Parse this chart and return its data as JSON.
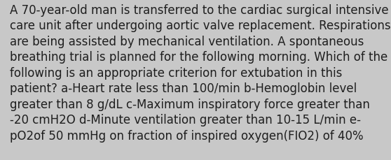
{
  "lines": [
    "A 70-year-old man is transferred to the cardiac surgical intensive",
    "care unit after undergoing aortic valve replacement. Respirations",
    "are being assisted by mechanical ventilation. A spontaneous",
    "breathing trial is planned for the following morning. Which of the",
    "following is an appropriate criterion for extubation in this",
    "patient? a-Heart rate less than 100/min b-Hemoglobin level",
    "greater than 8 g/dL c-Maximum inspiratory force greater than",
    "-20 cmH2O d-Minute ventilation greater than 10-15 L/min e-",
    "pO2of 50 mmHg on fraction of inspired oxygen(FIO2) of 40%"
  ],
  "background_color": "#c8c8c8",
  "text_color": "#1e1e1e",
  "font_size": 12.0,
  "fig_width": 5.58,
  "fig_height": 2.3,
  "dpi": 100
}
